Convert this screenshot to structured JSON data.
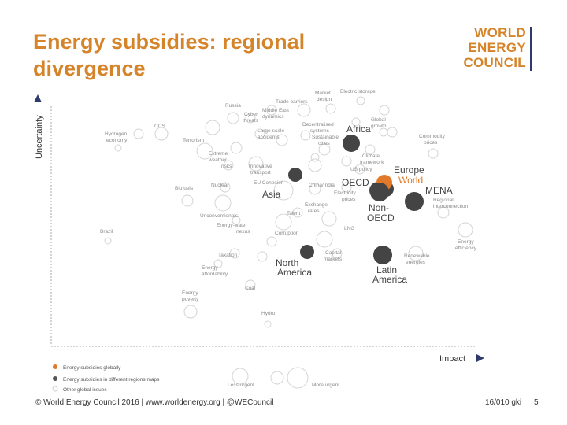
{
  "slide": {
    "title_line1": "Energy subsidies: regional",
    "title_line2": "divergence",
    "footer": "© World Energy Council 2016 | www.worldenergy.org | @WECouncil",
    "footer_date": "16/010 gki",
    "page_number": "5"
  },
  "logo": {
    "line1": "WORLD",
    "line2": "ENERGY",
    "line3": "COUNCIL",
    "color": "#d6842a",
    "bar_color": "#2e3a6b"
  },
  "axes": {
    "y_label": "Uncertainty",
    "x_label": "Impact"
  },
  "legend": {
    "items": [
      {
        "label": "Energy subsidies globally",
        "color": "#e07a2a"
      },
      {
        "label": "Energy subsidies in different regions maps",
        "color": "#555555"
      },
      {
        "label": "Other global issues",
        "color": "#dddddd"
      }
    ],
    "less_urgent": "Less urgent",
    "more_urgent": "More urgent"
  },
  "regions": {
    "africa": "Africa",
    "europe": "Europe",
    "world": "World",
    "mena": "MENA",
    "oecd": "OECD",
    "non_oecd_1": "Non-",
    "non_oecd_2": "OECD",
    "asia": "Asia",
    "north_america_1": "North",
    "north_america_2": "America",
    "latin_america_1": "Latin",
    "latin_america_2": "America"
  },
  "issues": {
    "russia": "Russia",
    "cyber_1": "Cyber",
    "cyber_2": "threats",
    "trade_barriers": "Trade barriers",
    "market_1": "Market",
    "market_2": "design",
    "elec_storage": "Electric storage",
    "me_1": "Middle East",
    "me_2": "dynamics",
    "decent_1": "Decentralised",
    "decent_2": "systems",
    "large_1": "Large-scale",
    "large_2": "accidents",
    "sustain_1": "Sustainable",
    "sustain_2": "cities",
    "global_1": "Global",
    "global_2": "growth",
    "hydrogen_1": "Hydrogen",
    "hydrogen_2": "economy",
    "ccs": "CCS",
    "terrorism": "Terrorism",
    "commodity_1": "Commodity",
    "commodity_2": "prices",
    "extreme_1": "Extreme",
    "extreme_2": "weather",
    "extreme_3": "risks",
    "climate_1": "Climate",
    "climate_2": "framework",
    "innov_1": "Innovative",
    "innov_2": "transport",
    "us_policy": "US policy",
    "nuclear": "Nuclear",
    "eu_cohesion": "EU Cohesion",
    "china_india": "China/India",
    "biofuels": "Biofuels",
    "elec_prices_1": "Electricity",
    "elec_prices_2": "prices",
    "regional_1": "Regional",
    "regional_2": "interconnection",
    "unconv": "Unconventionals",
    "talent": "Talent",
    "exchange_1": "Exchange",
    "exchange_2": "rates",
    "ewn_1": "Energy-water",
    "ewn_2": "nexus",
    "lng": "LNG",
    "brazil": "Brazil",
    "corruption": "Corruption",
    "energy_eff_1": "Energy",
    "energy_eff_2": "efficiency",
    "renewable_1": "Renewable",
    "renewable_2": "energies",
    "capital_1": "Capital",
    "capital_2": "markets",
    "taxation": "Taxation",
    "afford_1": "Energy",
    "afford_2": "affordability",
    "coal": "Coal",
    "poverty_1": "Energy",
    "poverty_2": "poverty",
    "hydro": "Hydro"
  }
}
